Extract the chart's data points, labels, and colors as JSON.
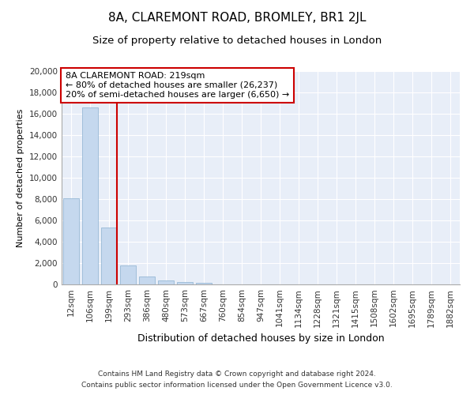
{
  "title_main": "8A, CLAREMONT ROAD, BROMLEY, BR1 2JL",
  "title_sub": "Size of property relative to detached houses in London",
  "xlabel": "Distribution of detached houses by size in London",
  "ylabel": "Number of detached properties",
  "categories": [
    "12sqm",
    "106sqm",
    "199sqm",
    "293sqm",
    "386sqm",
    "480sqm",
    "573sqm",
    "667sqm",
    "760sqm",
    "854sqm",
    "947sqm",
    "1041sqm",
    "1134sqm",
    "1228sqm",
    "1321sqm",
    "1415sqm",
    "1508sqm",
    "1602sqm",
    "1695sqm",
    "1789sqm",
    "1882sqm"
  ],
  "values": [
    8100,
    16600,
    5300,
    1750,
    750,
    350,
    250,
    180,
    0,
    0,
    0,
    0,
    0,
    0,
    0,
    0,
    0,
    0,
    0,
    0,
    0
  ],
  "bar_color": "#c5d8ee",
  "bar_edge_color": "#8ab0d0",
  "vline_color": "#cc0000",
  "annotation_text": "8A CLAREMONT ROAD: 219sqm\n← 80% of detached houses are smaller (26,237)\n20% of semi-detached houses are larger (6,650) →",
  "annotation_box_color": "#ffffff",
  "annotation_box_edge": "#cc0000",
  "ylim": [
    0,
    20000
  ],
  "yticks": [
    0,
    2000,
    4000,
    6000,
    8000,
    10000,
    12000,
    14000,
    16000,
    18000,
    20000
  ],
  "background_color": "#e8eef8",
  "footer_line1": "Contains HM Land Registry data © Crown copyright and database right 2024.",
  "footer_line2": "Contains public sector information licensed under the Open Government Licence v3.0.",
  "grid_color": "#ffffff",
  "title_main_fontsize": 11,
  "title_sub_fontsize": 9.5,
  "xlabel_fontsize": 9,
  "ylabel_fontsize": 8,
  "tick_fontsize": 7.5,
  "footer_fontsize": 6.5,
  "annot_fontsize": 8
}
